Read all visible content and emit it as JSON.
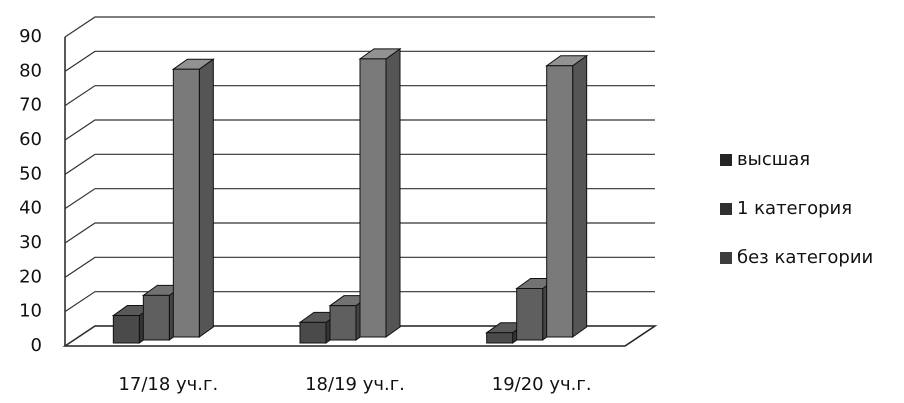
{
  "chart_data": {
    "type": "bar3d",
    "categories": [
      "17/18 уч.г.",
      "18/19 уч.г.",
      "19/20 уч.г."
    ],
    "series": [
      {
        "name": "высшая",
        "color": "#4a4a4a",
        "values": [
          8,
          6,
          3
        ]
      },
      {
        "name": "1 категория",
        "color": "#5f5f5f",
        "values": [
          13,
          10,
          15
        ]
      },
      {
        "name": "без категории",
        "color": "#7a7a7a",
        "values": [
          78,
          81,
          79
        ]
      }
    ],
    "ylim": [
      0,
      90
    ],
    "yticks": [
      0,
      10,
      20,
      30,
      40,
      50,
      60,
      70,
      80,
      90
    ],
    "grid": true,
    "legend": "right"
  }
}
